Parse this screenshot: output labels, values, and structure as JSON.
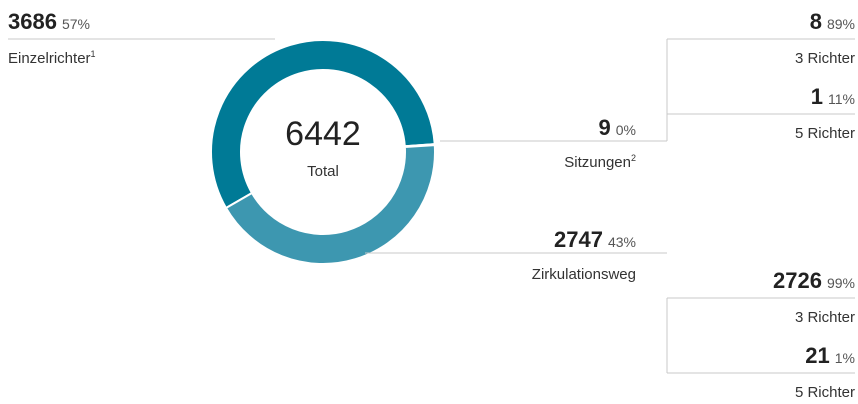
{
  "chart_data": {
    "type": "donut",
    "total": 6442,
    "total_label": "Total",
    "segments": [
      {
        "name": "Einzelrichter",
        "note": "1",
        "value": 3686,
        "percent_label": "57%",
        "color": "#007a96"
      },
      {
        "name": "Sitzungen",
        "note": "2",
        "value": 9,
        "percent_label": "0%",
        "color": "#005f75",
        "breakdown": [
          {
            "name": "3 Richter",
            "value": 8,
            "percent_label": "89%"
          },
          {
            "name": "5 Richter",
            "value": 1,
            "percent_label": "11%"
          }
        ]
      },
      {
        "name": "Zirkulationsweg",
        "value": 2747,
        "percent_label": "43%",
        "color": "#3d97b0",
        "breakdown": [
          {
            "name": "3 Richter",
            "value": 2726,
            "percent_label": "99%"
          },
          {
            "name": "5 Richter",
            "value": 21,
            "percent_label": "1%"
          }
        ]
      }
    ]
  }
}
